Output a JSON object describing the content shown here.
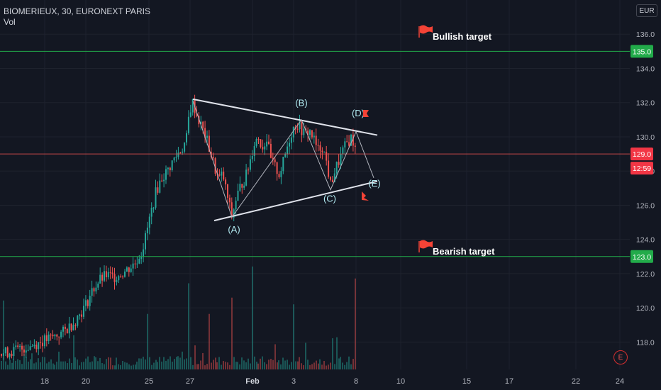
{
  "legend": {
    "title": "BIOMERIEUX, 30, EURONEXT PARIS",
    "volume_label": "Vol"
  },
  "currency_button": "EUR",
  "colors": {
    "background": "#131722",
    "up": "#26a69a",
    "down": "#ef5350",
    "target_line": "#22ab4a",
    "price_line": "#ef5350",
    "pattern": "#e0e3eb",
    "text": "#b2b5be"
  },
  "chart_data": {
    "type": "candlestick",
    "instrument": "BIOMERIEUX",
    "interval": "30",
    "exchange": "EURONEXT PARIS",
    "currency": "EUR",
    "ylim": [
      116.4,
      138.0
    ],
    "y_ticks": [
      118.0,
      120.0,
      122.0,
      124.0,
      126.0,
      128.0,
      130.0,
      132.0,
      134.0,
      136.0
    ],
    "x_labels": [
      "18",
      "20",
      "25",
      "27",
      "Feb",
      "3",
      "8",
      "10",
      "15",
      "17",
      "22",
      "24"
    ],
    "price_path": [
      [
        0,
        117.3
      ],
      [
        30,
        117.6
      ],
      [
        50,
        117.9
      ],
      [
        70,
        118.2
      ],
      [
        90,
        118.6
      ],
      [
        105,
        119.2
      ],
      [
        120,
        120.1
      ],
      [
        130,
        121.0
      ],
      [
        140,
        121.6
      ],
      [
        150,
        121.9
      ],
      [
        160,
        121.8
      ],
      [
        175,
        122.1
      ],
      [
        190,
        122.6
      ],
      [
        200,
        123.3
      ],
      [
        205,
        124.1
      ],
      [
        212,
        125.4
      ],
      [
        220,
        126.8
      ],
      [
        228,
        127.6
      ],
      [
        236,
        128.0
      ],
      [
        244,
        128.6
      ],
      [
        252,
        129.1
      ],
      [
        258,
        129.4
      ],
      [
        263,
        129.9
      ],
      [
        267,
        131.5
      ],
      [
        272,
        132.0
      ],
      [
        278,
        131.2
      ],
      [
        284,
        130.6
      ],
      [
        290,
        130.0
      ],
      [
        296,
        129.2
      ],
      [
        302,
        128.3
      ],
      [
        308,
        127.5
      ],
      [
        314,
        127.8
      ],
      [
        320,
        126.6
      ],
      [
        327,
        125.3
      ],
      [
        333,
        126.4
      ],
      [
        340,
        127.2
      ],
      [
        346,
        127.6
      ],
      [
        352,
        128.5
      ],
      [
        358,
        129.6
      ],
      [
        364,
        130.0
      ],
      [
        370,
        129.4
      ],
      [
        376,
        129.9
      ],
      [
        382,
        128.6
      ],
      [
        388,
        128.2
      ],
      [
        394,
        127.8
      ],
      [
        400,
        128.6
      ],
      [
        406,
        129.6
      ],
      [
        412,
        130.4
      ],
      [
        418,
        130.8
      ],
      [
        424,
        130.5
      ],
      [
        430,
        130.1
      ],
      [
        436,
        130.4
      ],
      [
        442,
        129.9
      ],
      [
        448,
        129.2
      ],
      [
        454,
        129.5
      ],
      [
        460,
        128.6
      ],
      [
        466,
        127.2
      ],
      [
        472,
        128.0
      ],
      [
        478,
        128.6
      ],
      [
        484,
        129.2
      ],
      [
        490,
        129.7
      ],
      [
        496,
        130.0
      ],
      [
        502,
        129.1
      ]
    ],
    "volume_spikes": [
      {
        "x": 4,
        "v": 0.72
      },
      {
        "x": 208,
        "v": 0.58
      },
      {
        "x": 267,
        "v": 0.9
      },
      {
        "x": 296,
        "v": 0.58
      },
      {
        "x": 326,
        "v": 0.75
      },
      {
        "x": 355,
        "v": 0.98
      },
      {
        "x": 415,
        "v": 0.68
      },
      {
        "x": 502,
        "v": 0.95
      }
    ],
    "horizontal_lines": [
      {
        "name": "bullish-target",
        "price": 135.0,
        "label": "Bullish target",
        "axis_tag": "135.0"
      },
      {
        "name": "bearish-target",
        "price": 123.0,
        "label": "Bearish target",
        "axis_tag": "123.0"
      },
      {
        "name": "last-price",
        "price": 129.0,
        "axis_tag": "129.0",
        "countdown": "12:59"
      }
    ],
    "triangle": {
      "upper": [
        [
          272,
          132.2
        ],
        [
          532,
          130.1
        ]
      ],
      "lower": [
        [
          302,
          125.1
        ],
        [
          532,
          127.4
        ]
      ]
    },
    "wave_path": [
      [
        272,
        132.1
      ],
      [
        327,
        125.3
      ],
      [
        425,
        131.0
      ],
      [
        466,
        126.9
      ],
      [
        502,
        130.3
      ],
      [
        527,
        127.6
      ]
    ],
    "wave_labels": [
      {
        "label": "(A)",
        "x": 330,
        "price": 124.4
      },
      {
        "label": "(B)",
        "x": 425,
        "price": 131.8
      },
      {
        "label": "(C)",
        "x": 465,
        "price": 126.2
      },
      {
        "label": "(D)",
        "x": 505,
        "price": 131.2
      },
      {
        "label": "(E)",
        "x": 528,
        "price": 127.1
      }
    ]
  }
}
